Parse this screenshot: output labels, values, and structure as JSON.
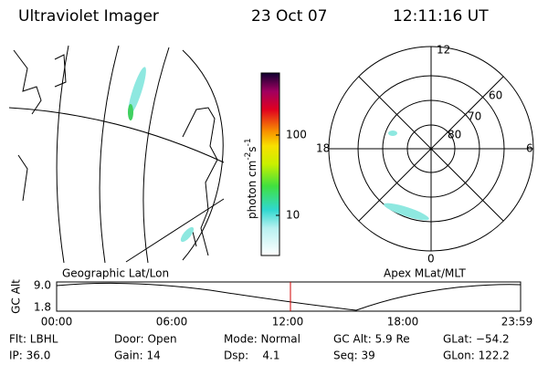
{
  "header": {
    "title": "Ultraviolet Imager",
    "date": "23 Oct 07",
    "time": "12:11:16 UT"
  },
  "colorbar": {
    "label": "photon cm",
    "exp1": "-2",
    "unit2": "s",
    "exp2": "-1",
    "ticks": [
      "100",
      "10"
    ]
  },
  "panels": {
    "left": "Geographic Lat/Lon",
    "right": "Apex MLat/MLT"
  },
  "polar": {
    "mlt_labels": [
      "12",
      "18",
      "6",
      "0"
    ],
    "lat_labels": [
      "60",
      "70",
      "80"
    ]
  },
  "altitude_plot": {
    "y_label": "GC Alt",
    "yticks": [
      "9.0",
      "1.8"
    ],
    "xticks": [
      "00:00",
      "06:00",
      "12:00",
      "18:00",
      "23:59"
    ]
  },
  "info": {
    "rows": [
      [
        "Flt: LBHL",
        "Door: Open",
        "Mode: Normal",
        "GC Alt: 5.9 Re",
        "GLat: −54.2"
      ],
      [
        "IP: 36.0",
        "Gain: 14",
        "Dsp:    4.1",
        "Seq: 39",
        "GLon: 122.2"
      ]
    ]
  }
}
